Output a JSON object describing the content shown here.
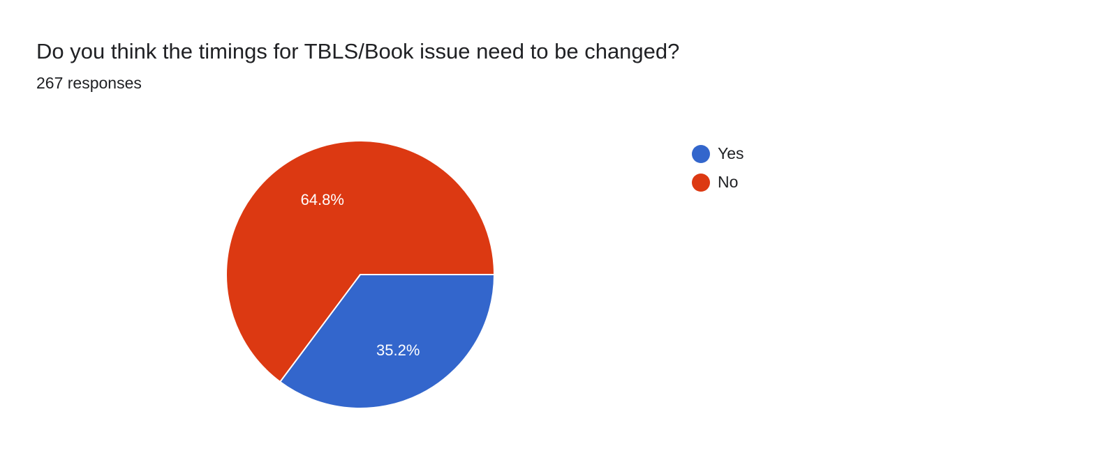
{
  "header": {
    "title": "Do you think the timings for TBLS/Book issue need to be changed?",
    "responses": "267 responses"
  },
  "chart_data": {
    "type": "pie",
    "categories": [
      "Yes",
      "No"
    ],
    "values": [
      35.2,
      64.8
    ],
    "labels": [
      "35.2%",
      "64.8%"
    ],
    "colors": [
      "#3366cc",
      "#dc3912"
    ],
    "legend_position": "right"
  }
}
